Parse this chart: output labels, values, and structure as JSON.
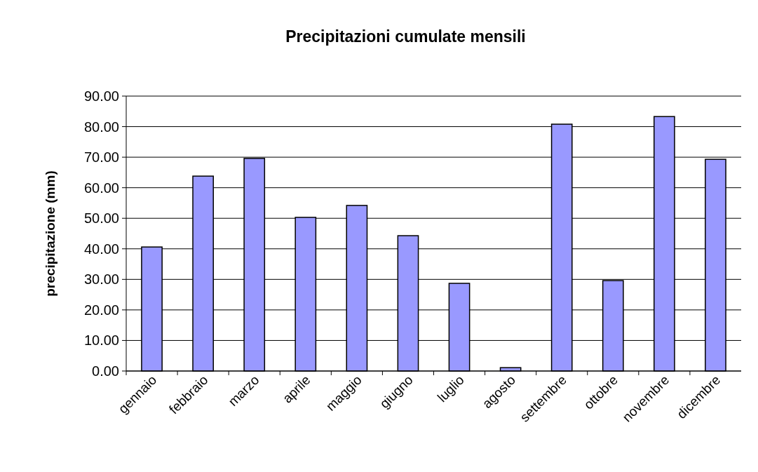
{
  "chart_data": {
    "type": "bar",
    "title": "Precipitazioni cumulate mensili",
    "ylabel": "precipitazione (mm)",
    "categories": [
      "gennaio",
      "febbraio",
      "marzo",
      "aprile",
      "maggio",
      "giugno",
      "luglio",
      "agosto",
      "settembre",
      "ottobre",
      "novembre",
      "dicembre"
    ],
    "values": [
      40.6,
      63.8,
      69.6,
      50.3,
      54.2,
      44.3,
      28.7,
      1.1,
      80.8,
      29.6,
      83.3,
      69.3
    ],
    "color": "#9999ff",
    "ylim": [
      0,
      90
    ],
    "yticks": [
      {
        "value": 0,
        "label": "0.00"
      },
      {
        "value": 10,
        "label": "10.00"
      },
      {
        "value": 20,
        "label": "20.00"
      },
      {
        "value": 30,
        "label": "30.00"
      },
      {
        "value": 40,
        "label": "40.00"
      },
      {
        "value": 50,
        "label": "50.00"
      },
      {
        "value": 60,
        "label": "60.00"
      },
      {
        "value": 70,
        "label": "70.00"
      },
      {
        "value": 80,
        "label": "80.00"
      },
      {
        "value": 90,
        "label": "90.00"
      }
    ],
    "grid": "y"
  }
}
